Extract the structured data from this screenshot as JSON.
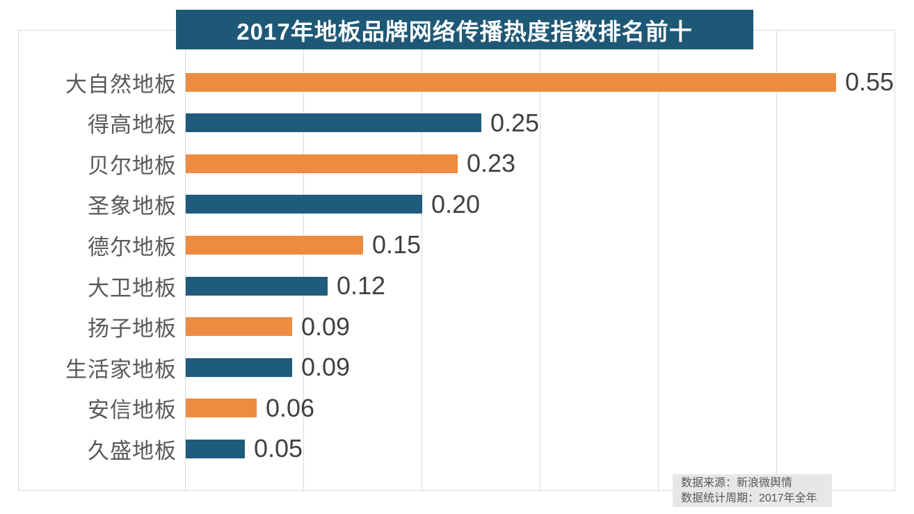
{
  "title": {
    "text": "2017年地板品牌网络传播热度指数排名前十"
  },
  "footer": {
    "source": "数据来源：新浪微舆情",
    "period": "数据统计周期：2017年全年"
  },
  "colors": {
    "orange": "#ED8C40",
    "blue": "#1F5B7D",
    "title_bg": "#1E5877",
    "grid": "#D9D9D9",
    "frame_border": "#D9D9D9",
    "category_label": "#595959",
    "value_label": "#404040",
    "footer_bg": "#E7E7E7",
    "footer_text": "#595959"
  },
  "chart_data": {
    "type": "bar",
    "orientation": "horizontal",
    "title": "2017年地板品牌网络传播热度指数排名前十",
    "categories": [
      "大自然地板",
      "得高地板",
      "贝尔地板",
      "圣象地板",
      "德尔地板",
      "大卫地板",
      "扬子地板",
      "生活家地板",
      "安信地板",
      "久盛地板"
    ],
    "values": [
      0.55,
      0.25,
      0.23,
      0.2,
      0.15,
      0.12,
      0.09,
      0.09,
      0.06,
      0.05
    ],
    "value_labels": [
      "0.55",
      "0.25",
      "0.23",
      "0.20",
      "0.15",
      "0.12",
      "0.09",
      "0.09",
      "0.06",
      "0.05"
    ],
    "bar_colors": [
      "orange",
      "blue",
      "orange",
      "blue",
      "orange",
      "blue",
      "orange",
      "blue",
      "orange",
      "blue"
    ],
    "xlabel": "",
    "ylabel": "",
    "xlim": [
      0,
      0.6
    ],
    "grid_ticks": [
      0,
      0.1,
      0.2,
      0.3,
      0.4,
      0.5,
      0.6
    ],
    "grid": "vertical-gridlines-no-tick-labels",
    "legend": "none",
    "value_labels_position": "end-of-bar",
    "annotations": [
      "数据来源：新浪微舆情",
      "数据统计周期：2017年全年"
    ]
  }
}
